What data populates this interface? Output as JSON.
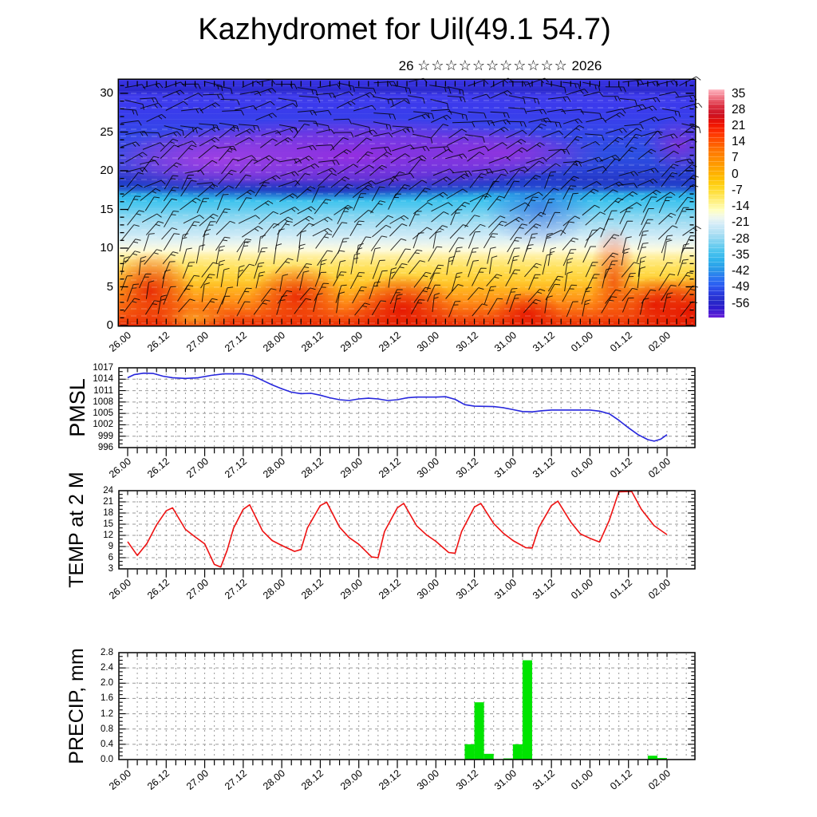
{
  "title": "Kazhydromet for Uil(49.1 54.7)",
  "subtitle": {
    "day": "26",
    "stars": "☆☆☆☆☆☆☆☆☆☆☆",
    "year": "2026"
  },
  "x_axis_labels": [
    "26.00",
    "26.12",
    "27.00",
    "27.12",
    "28.00",
    "28.12",
    "29.00",
    "29.12",
    "30.00",
    "30.12",
    "31.00",
    "31.12",
    "01.00",
    "01.12",
    "02.00"
  ],
  "panels": {
    "cross_section": {
      "y_ticks": [
        30,
        25,
        20,
        15,
        10,
        5,
        0
      ]
    },
    "pmsl": {
      "label": "PMSL",
      "y_ticks": [
        1017,
        1014,
        1011,
        1008,
        1005,
        1002,
        999,
        996
      ],
      "line_color": "#2626dd"
    },
    "temp": {
      "label": "TEMP at 2 M",
      "y_ticks": [
        24,
        21,
        18,
        15,
        12,
        9,
        6,
        3
      ],
      "line_color": "#ee1111"
    },
    "precip": {
      "label": "PRECIP, mm",
      "y_ticks": [
        "2.8",
        "2.4",
        "2.0",
        "1.6",
        "1.2",
        "0.8",
        "0.4",
        "0.0"
      ],
      "bar_color": "#00e400"
    }
  },
  "colorbar": {
    "tick_labels": [
      "35",
      "28",
      "21",
      "14",
      "7",
      "0",
      "-7",
      "-14",
      "-21",
      "-28",
      "-35",
      "-42",
      "-49",
      "-56"
    ]
  },
  "chart_data": [
    {
      "type": "heatmap",
      "id": "wind-temperature-cross-section",
      "title": "time-height cross-section with wind barbs",
      "x_labels": [
        "26.00",
        "26.12",
        "27.00",
        "27.12",
        "28.00",
        "28.12",
        "29.00",
        "29.12",
        "30.00",
        "30.12",
        "31.00",
        "31.12",
        "01.00",
        "01.12",
        "02.00"
      ],
      "y_range": [
        0,
        31
      ],
      "colorbar_ticks": [
        35,
        28,
        21,
        14,
        7,
        0,
        -7,
        -14,
        -21,
        -28,
        -35,
        -42,
        -49,
        -56
      ],
      "approx_temp_profile_by_height": [
        {
          "height": 0,
          "temp": 24
        },
        {
          "height": 3,
          "temp": 20
        },
        {
          "height": 6,
          "temp": 15
        },
        {
          "height": 9,
          "temp": 10
        },
        {
          "height": 12,
          "temp": 3
        },
        {
          "height": 14,
          "temp": -4
        },
        {
          "height": 16,
          "temp": -13
        },
        {
          "height": 18,
          "temp": -21
        },
        {
          "height": 20,
          "temp": -28
        },
        {
          "height": 22,
          "temp": -44
        },
        {
          "height": 24,
          "temp": -55
        },
        {
          "height": 27,
          "temp": -50
        },
        {
          "height": 30,
          "temp": -46
        }
      ],
      "legend_position": "right"
    },
    {
      "type": "line",
      "id": "pmsl",
      "ylabel": "PMSL",
      "ylim": [
        996,
        1017
      ],
      "grid": true,
      "x_unit": "hours from 26.00",
      "points": [
        [
          0,
          1014.4
        ],
        [
          2,
          1015.2
        ],
        [
          5,
          1015.6
        ],
        [
          8,
          1015.5
        ],
        [
          11,
          1014.8
        ],
        [
          14,
          1014.4
        ],
        [
          18,
          1014.2
        ],
        [
          22,
          1014.4
        ],
        [
          26,
          1015.0
        ],
        [
          30,
          1015.4
        ],
        [
          36,
          1015.4
        ],
        [
          39,
          1014.9
        ],
        [
          42,
          1013.7
        ],
        [
          45,
          1012.5
        ],
        [
          48,
          1011.5
        ],
        [
          51,
          1010.6
        ],
        [
          54,
          1010.2
        ],
        [
          57,
          1010.3
        ],
        [
          60,
          1009.8
        ],
        [
          63,
          1009.1
        ],
        [
          66,
          1008.6
        ],
        [
          69,
          1008.4
        ],
        [
          72,
          1008.8
        ],
        [
          75,
          1009.0
        ],
        [
          78,
          1008.8
        ],
        [
          81,
          1008.4
        ],
        [
          84,
          1008.6
        ],
        [
          87,
          1009.1
        ],
        [
          90,
          1009.3
        ],
        [
          96,
          1009.3
        ],
        [
          99,
          1009.4
        ],
        [
          102,
          1008.7
        ],
        [
          105,
          1007.3
        ],
        [
          108,
          1006.9
        ],
        [
          114,
          1006.8
        ],
        [
          117,
          1006.5
        ],
        [
          120,
          1006.0
        ],
        [
          123,
          1005.5
        ],
        [
          126,
          1005.4
        ],
        [
          129,
          1005.7
        ],
        [
          132,
          1005.9
        ],
        [
          138,
          1005.9
        ],
        [
          144,
          1005.9
        ],
        [
          147,
          1005.6
        ],
        [
          150,
          1004.9
        ],
        [
          153,
          1003.2
        ],
        [
          156,
          1001.2
        ],
        [
          159,
          999.4
        ],
        [
          162,
          998.1
        ],
        [
          164,
          997.7
        ],
        [
          166,
          998.2
        ],
        [
          168,
          999.4
        ]
      ]
    },
    {
      "type": "line",
      "id": "temp2m",
      "ylabel": "TEMP at 2 M",
      "ylim": [
        3,
        24
      ],
      "grid": true,
      "x_unit": "hours from 26.00",
      "points": [
        [
          0,
          10.3
        ],
        [
          3,
          6.6
        ],
        [
          6,
          9.8
        ],
        [
          9,
          14.8
        ],
        [
          12,
          18.6
        ],
        [
          14,
          19.4
        ],
        [
          18,
          13.6
        ],
        [
          21,
          11.6
        ],
        [
          24,
          9.7
        ],
        [
          27,
          4.2
        ],
        [
          29,
          3.5
        ],
        [
          31,
          8.0
        ],
        [
          33,
          14.0
        ],
        [
          36,
          19.0
        ],
        [
          38,
          20.2
        ],
        [
          42,
          13.2
        ],
        [
          45,
          10.6
        ],
        [
          48,
          9.3
        ],
        [
          52,
          7.7
        ],
        [
          54,
          8.2
        ],
        [
          56,
          14.0
        ],
        [
          60,
          20.0
        ],
        [
          62,
          20.9
        ],
        [
          66,
          14.2
        ],
        [
          69,
          11.4
        ],
        [
          72,
          9.6
        ],
        [
          76,
          6.2
        ],
        [
          78,
          6.0
        ],
        [
          80,
          13.0
        ],
        [
          84,
          19.4
        ],
        [
          86,
          20.6
        ],
        [
          90,
          14.6
        ],
        [
          93,
          12.2
        ],
        [
          96,
          10.4
        ],
        [
          100,
          7.4
        ],
        [
          102,
          7.2
        ],
        [
          104,
          13.0
        ],
        [
          108,
          19.6
        ],
        [
          110,
          20.6
        ],
        [
          114,
          15.2
        ],
        [
          117,
          12.6
        ],
        [
          120,
          10.6
        ],
        [
          124,
          8.7
        ],
        [
          126,
          8.6
        ],
        [
          128,
          14.0
        ],
        [
          132,
          20.0
        ],
        [
          134,
          21.2
        ],
        [
          138,
          15.6
        ],
        [
          141,
          12.4
        ],
        [
          144,
          11.2
        ],
        [
          147,
          10.2
        ],
        [
          150,
          16.0
        ],
        [
          153,
          23.7
        ],
        [
          157,
          23.8
        ],
        [
          160,
          19.0
        ],
        [
          164,
          14.6
        ],
        [
          168,
          12.2
        ]
      ]
    },
    {
      "type": "bar",
      "id": "precip",
      "ylabel": "PRECIP, mm",
      "ylim": [
        0,
        2.8
      ],
      "grid": true,
      "bar_width_hours": 3,
      "x_unit": "hours from 26.00 (bar start)",
      "bars": [
        [
          105,
          0.4
        ],
        [
          108,
          1.5
        ],
        [
          111,
          0.15
        ],
        [
          117,
          0.03
        ],
        [
          120,
          0.4
        ],
        [
          123,
          2.6
        ],
        [
          162,
          0.1
        ],
        [
          165,
          0.04
        ]
      ]
    }
  ]
}
